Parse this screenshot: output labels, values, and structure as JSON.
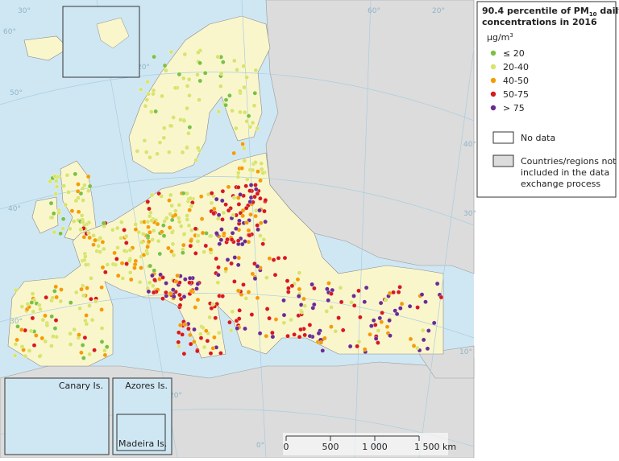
{
  "legend": {
    "title_pre": "90.4 percentile of PM",
    "title_sub": "10",
    "title_post": " daily",
    "title_line2": "concentrations in 2016",
    "unit": "µg/m",
    "unit_sup": "3",
    "classes": [
      {
        "label": "≤ 20",
        "color": "#7ac143"
      },
      {
        "label": "20-40",
        "color": "#d8e46c"
      },
      {
        "label": "40-50",
        "color": "#f59c00"
      },
      {
        "label": "50-75",
        "color": "#d7191c"
      },
      {
        "label": "> 75",
        "color": "#6a2c91"
      }
    ],
    "no_data": "No data",
    "not_included": [
      "Countries/regions not",
      "included in the data",
      "exchange process"
    ]
  },
  "insets": [
    "Canary Is.",
    "Azores Is.",
    "Madeira Is."
  ],
  "scale": {
    "ticks": [
      0,
      500,
      {
        "value": 1000,
        "label": "1 000"
      },
      {
        "value": 1500,
        "label": "1 500 km"
      }
    ]
  },
  "graticule": [
    "30°",
    "10°",
    "60°",
    "20°",
    "50°",
    "40°",
    "30°",
    "20°",
    "30°",
    "10°",
    "40°",
    "30°",
    "20°",
    "10°",
    "60°",
    "0°",
    "10°",
    "20°"
  ]
}
